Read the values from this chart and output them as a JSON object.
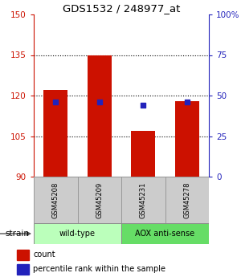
{
  "title": "GDS1532 / 248977_at",
  "samples": [
    "GSM45208",
    "GSM45209",
    "GSM45231",
    "GSM45278"
  ],
  "count_values": [
    122,
    135,
    107,
    118
  ],
  "percentile_values": [
    46,
    46,
    44,
    46
  ],
  "ylim_left": [
    90,
    150
  ],
  "ylim_right": [
    0,
    100
  ],
  "yticks_left": [
    90,
    105,
    120,
    135,
    150
  ],
  "yticks_right": [
    0,
    25,
    50,
    75,
    100
  ],
  "yticklabels_right": [
    "0",
    "25",
    "50",
    "75",
    "100%"
  ],
  "bar_color": "#cc1100",
  "percentile_color": "#2222bb",
  "groups": [
    {
      "label": "wild-type",
      "indices": [
        0,
        1
      ],
      "color": "#bbffbb"
    },
    {
      "label": "AOX anti-sense",
      "indices": [
        2,
        3
      ],
      "color": "#66dd66"
    }
  ],
  "strain_label": "strain",
  "legend_count_label": "count",
  "legend_percentile_label": "percentile rank within the sample",
  "bar_width": 0.55,
  "left_tick_color": "#cc1100",
  "right_tick_color": "#2222bb",
  "sample_box_color": "#cccccc",
  "sample_box_edge": "#999999"
}
